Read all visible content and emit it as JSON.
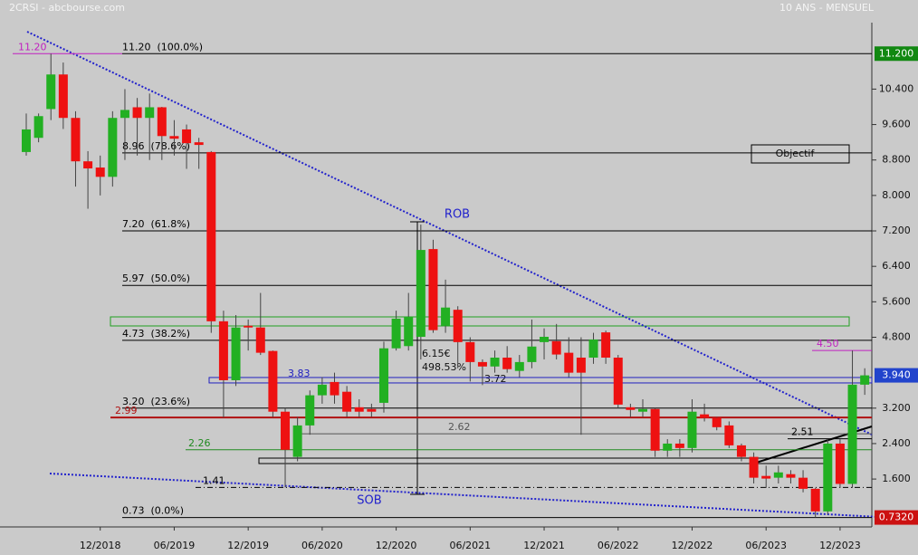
{
  "header": {
    "left": "2CRSI - abcbourse.com",
    "right": "10 ANS - MENSUEL"
  },
  "chart_data": {
    "type": "candlestick",
    "up_color": "#22b022",
    "down_color": "#ee1111",
    "categories": [
      null,
      null,
      null,
      null,
      null,
      null,
      "12/2018",
      null,
      null,
      null,
      null,
      null,
      "06/2019",
      null,
      null,
      null,
      null,
      null,
      "12/2019",
      null,
      null,
      null,
      null,
      null,
      "06/2020",
      null,
      null,
      null,
      null,
      null,
      "12/2020",
      null,
      null,
      null,
      null,
      null,
      "06/2021",
      null,
      null,
      null,
      null,
      null,
      "12/2021",
      null,
      null,
      null,
      null,
      null,
      "06/2022",
      null,
      null,
      null,
      null,
      null,
      "12/2022",
      null,
      null,
      null,
      null,
      null,
      "06/2023",
      null,
      null,
      null,
      null,
      null,
      "12/2023",
      null,
      null
    ],
    "open": [
      8.98,
      9.3,
      9.95,
      10.73,
      9.75,
      8.77,
      8.63,
      8.42,
      9.75,
      9.99,
      9.75,
      9.99,
      9.34,
      9.49,
      9.2,
      8.98,
      5.16,
      3.83,
      5.06,
      5.02,
      4.49,
      3.12,
      2.1,
      2.81,
      3.49,
      3.79,
      3.57,
      3.22,
      3.18,
      3.32,
      4.55,
      4.6,
      4.81,
      6.79,
      5.06,
      5.42,
      4.69,
      4.24,
      4.14,
      4.34,
      4.04,
      4.24,
      4.69,
      4.71,
      4.45,
      4.34,
      4.34,
      4.91,
      4.34,
      3.22,
      3.12,
      3.18,
      2.24,
      2.4,
      2.3,
      3.06,
      2.98,
      2.81,
      2.36,
      2.1,
      1.67,
      1.63,
      1.71,
      1.63,
      1.38,
      0.87,
      2.4,
      1.49,
      3.73
    ],
    "high": [
      9.85,
      9.85,
      11.2,
      11.0,
      9.9,
      9.0,
      8.9,
      9.9,
      10.4,
      10.2,
      10.3,
      10.0,
      9.7,
      9.6,
      9.3,
      9.0,
      5.4,
      5.3,
      5.2,
      5.8,
      4.5,
      3.2,
      3.0,
      3.6,
      3.9,
      4.0,
      3.7,
      3.4,
      3.3,
      4.7,
      5.4,
      5.8,
      7.34,
      7.0,
      6.1,
      5.5,
      4.8,
      4.3,
      4.5,
      4.6,
      4.4,
      5.2,
      5.0,
      5.1,
      4.8,
      4.8,
      4.9,
      4.95,
      4.4,
      3.3,
      3.4,
      3.2,
      2.5,
      2.5,
      3.4,
      3.3,
      3.0,
      2.9,
      2.4,
      2.2,
      1.9,
      1.9,
      1.8,
      1.8,
      1.4,
      2.5,
      2.5,
      4.5,
      4.1
    ],
    "low": [
      8.9,
      9.2,
      9.7,
      9.5,
      8.2,
      7.7,
      8.0,
      8.2,
      8.8,
      8.9,
      8.8,
      8.8,
      8.9,
      8.6,
      8.6,
      4.9,
      2.99,
      3.7,
      4.5,
      4.4,
      3.0,
      1.41,
      2.0,
      2.6,
      3.3,
      3.3,
      3.0,
      3.0,
      3.0,
      3.1,
      4.5,
      4.5,
      4.3,
      4.9,
      4.9,
      4.1,
      3.8,
      3.72,
      4.0,
      4.0,
      3.9,
      4.1,
      4.3,
      4.3,
      3.9,
      2.6,
      4.2,
      4.2,
      3.2,
      3.0,
      3.0,
      2.1,
      2.1,
      2.1,
      2.2,
      2.9,
      2.7,
      2.3,
      2.0,
      1.5,
      1.4,
      1.5,
      1.5,
      1.3,
      0.73,
      0.8,
      1.4,
      1.4,
      3.5
    ],
    "close": [
      9.49,
      9.79,
      10.73,
      9.75,
      8.77,
      8.61,
      8.42,
      9.75,
      9.93,
      9.75,
      9.99,
      9.34,
      9.28,
      9.18,
      9.14,
      5.16,
      3.83,
      5.02,
      5.02,
      4.45,
      3.12,
      2.26,
      2.81,
      3.49,
      3.73,
      3.49,
      3.12,
      3.12,
      3.12,
      4.55,
      5.22,
      5.26,
      6.77,
      4.96,
      5.47,
      4.69,
      4.24,
      4.14,
      4.34,
      4.08,
      4.24,
      4.59,
      4.81,
      4.41,
      4.0,
      4.0,
      4.75,
      4.34,
      3.28,
      3.16,
      3.18,
      2.24,
      2.4,
      2.3,
      3.12,
      2.98,
      2.77,
      2.36,
      2.1,
      1.63,
      1.61,
      1.75,
      1.63,
      1.38,
      0.87,
      2.4,
      1.49,
      3.73,
      3.94
    ],
    "ylim": [
      0.56,
      11.9
    ],
    "yticks": [
      {
        "value": 10.4,
        "label": "10.400"
      },
      {
        "value": 9.6,
        "label": "9.600"
      },
      {
        "value": 8.8,
        "label": "8.800"
      },
      {
        "value": 8.0,
        "label": "8.000"
      },
      {
        "value": 7.2,
        "label": "7.200"
      },
      {
        "value": 6.4,
        "label": "6.400"
      },
      {
        "value": 5.6,
        "label": "5.600"
      },
      {
        "value": 4.8,
        "label": "4.800"
      },
      {
        "value": 3.2,
        "label": "3.200"
      },
      {
        "value": 2.4,
        "label": "2.400"
      },
      {
        "value": 1.6,
        "label": "1.600"
      }
    ],
    "levels": [
      {
        "value": 11.2,
        "label": "11.20  (100.0%)",
        "color": "#000000"
      },
      {
        "value": 8.96,
        "label": "8.96  (78.6%)",
        "color": "#000000"
      },
      {
        "value": 7.2,
        "label": "7.20  (61.8%)",
        "color": "#000000"
      },
      {
        "value": 5.97,
        "label": "5.97  (50.0%)",
        "color": "#000000"
      },
      {
        "value": 4.73,
        "label": "4.73  (38.2%)",
        "color": "#000000"
      },
      {
        "value": 3.2,
        "label": "3.20  (23.6%)",
        "color": "#000000"
      },
      {
        "value": 0.73,
        "label": "0.73  (0.0%)",
        "color": "#000000"
      },
      {
        "value": 11.2,
        "label": "11.20",
        "color": "#c020c0"
      },
      {
        "value": 4.5,
        "label": "4.50",
        "color": "#c020c0"
      },
      {
        "value": 2.99,
        "label": "2.99",
        "color": "#b01010"
      },
      {
        "value": 2.26,
        "label": "2.26",
        "color": "#208a20"
      },
      {
        "value": 3.83,
        "label": "3.83",
        "color": "#2020c0"
      },
      {
        "value": 2.62,
        "label": "2.62",
        "color": "#555555"
      },
      {
        "value": 2.51,
        "label": "2.51",
        "color": "#000000"
      },
      {
        "value": 1.41,
        "label": "1.41",
        "color": "#000000"
      }
    ],
    "price_tags": [
      {
        "value": 11.2,
        "label": "11.200",
        "color": "#118811"
      },
      {
        "value": 3.94,
        "label": "3.940",
        "color": "#2244cc"
      },
      {
        "value": 0.732,
        "label": "0.7320",
        "color": "#cc1111"
      }
    ],
    "annotations": {
      "rob": "ROB",
      "sob": "SOB",
      "objective": "Objectif",
      "gain": "6.15€",
      "gain_pct": "498.53%",
      "low_mark": "3.72"
    }
  }
}
